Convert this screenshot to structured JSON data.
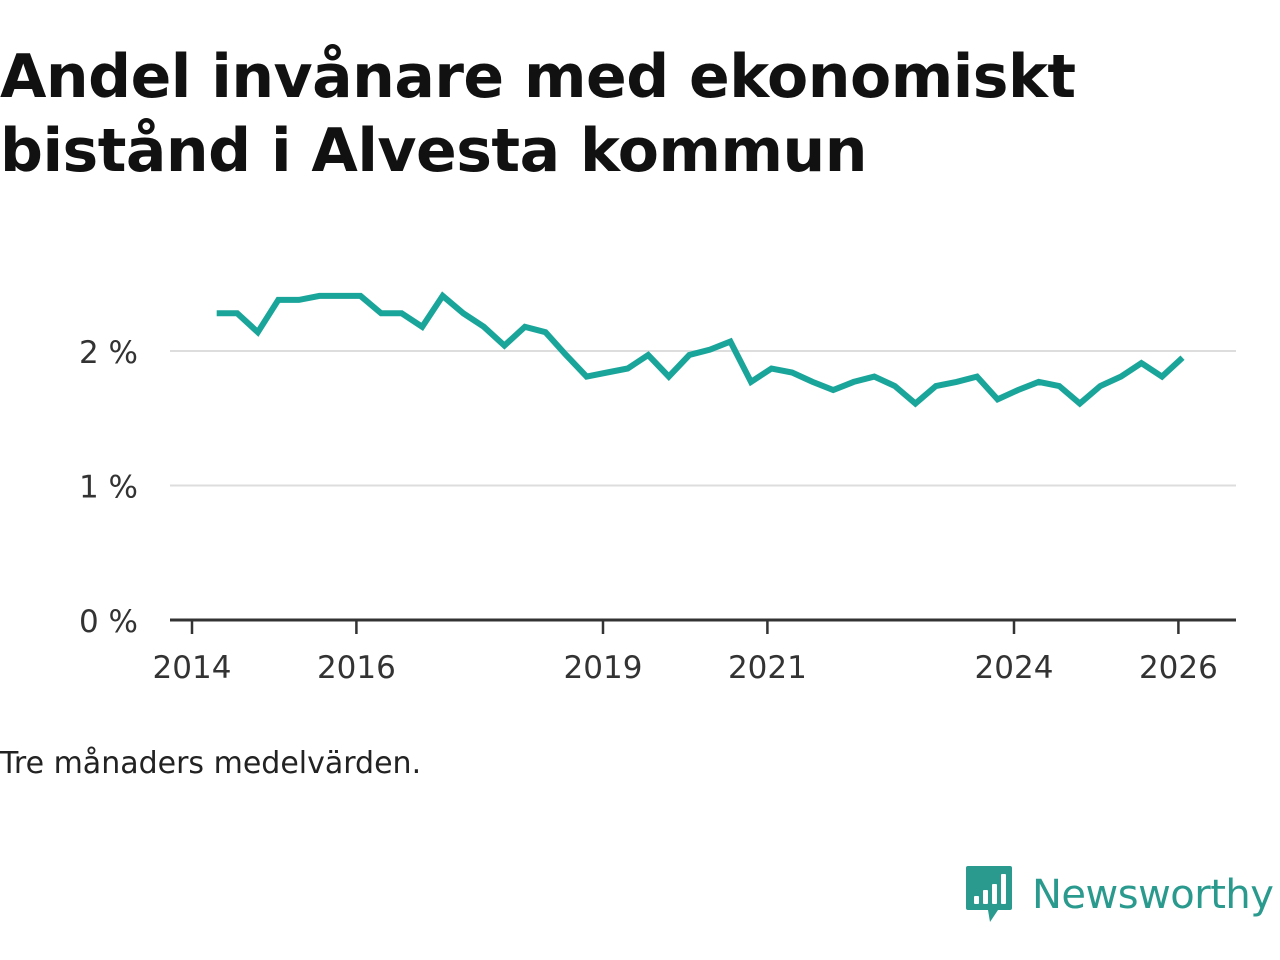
{
  "chart_data": {
    "type": "line",
    "title": "Andel invånare med ekonomiskt bistånd i Alvesta kommun",
    "xlabel": "",
    "ylabel": "",
    "xlim": [
      2014,
      2026.5
    ],
    "ylim": [
      0,
      2.5
    ],
    "x_ticks": [
      2014,
      2016,
      2019,
      2021,
      2024,
      2026
    ],
    "x_tick_labels": [
      "2014",
      "2016",
      "2019",
      "2021",
      "2024",
      "2026"
    ],
    "y_ticks": [
      0,
      1,
      2
    ],
    "y_tick_labels": [
      "0 %",
      "1 %",
      "2 %"
    ],
    "grid": true,
    "line_color": "#1aa59a",
    "series": [
      {
        "name": "Andel invånare med ekonomiskt bistånd",
        "x": [
          2014.3,
          2014.55,
          2014.8,
          2015.05,
          2015.3,
          2015.55,
          2015.8,
          2016.05,
          2016.3,
          2016.55,
          2016.8,
          2017.05,
          2017.3,
          2017.55,
          2017.8,
          2018.05,
          2018.3,
          2018.55,
          2018.8,
          2019.05,
          2019.3,
          2019.55,
          2019.8,
          2020.05,
          2020.3,
          2020.55,
          2020.8,
          2021.05,
          2021.3,
          2021.55,
          2021.8,
          2022.05,
          2022.3,
          2022.55,
          2022.8,
          2023.05,
          2023.3,
          2023.55,
          2023.8,
          2024.05,
          2024.3,
          2024.55,
          2024.8,
          2025.05,
          2025.3,
          2025.55,
          2025.8,
          2026.05
        ],
        "values": [
          2.28,
          2.28,
          2.14,
          2.38,
          2.38,
          2.41,
          2.41,
          2.41,
          2.28,
          2.28,
          2.18,
          2.41,
          2.28,
          2.18,
          2.04,
          2.18,
          2.14,
          1.97,
          1.81,
          1.84,
          1.87,
          1.97,
          1.81,
          1.97,
          2.01,
          2.07,
          1.77,
          1.87,
          1.84,
          1.77,
          1.71,
          1.77,
          1.81,
          1.74,
          1.61,
          1.74,
          1.77,
          1.81,
          1.64,
          1.71,
          1.77,
          1.74,
          1.61,
          1.74,
          1.81,
          1.91,
          1.81,
          1.95
        ]
      }
    ],
    "note": "Tre månaders medelvärden."
  },
  "brand": {
    "name": "Newsworthy",
    "icon": "newsworthy-logo-icon",
    "color": "#2a9a8e"
  }
}
